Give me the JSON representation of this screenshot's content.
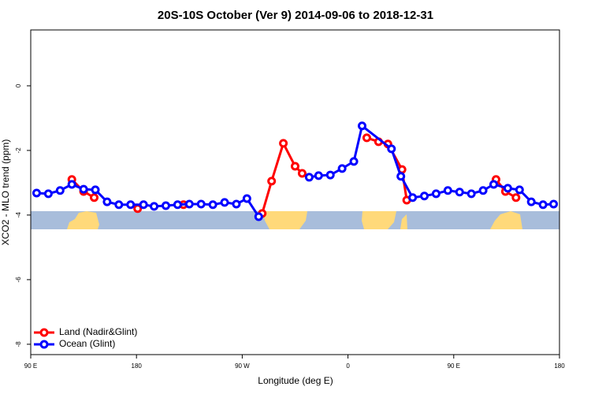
{
  "chart_data": {
    "type": "line",
    "title": "20S-10S October (Ver 9)   2014-09-06 to 2018-12-31",
    "x_label": "Longitude (deg E)",
    "y_label": "XCO2 - MLO trend (ppm)",
    "xlim": [
      90,
      540
    ],
    "ylim": [
      1.73,
      -8.32
    ],
    "xticks": [
      {
        "value": 90,
        "label": "90 E"
      },
      {
        "value": 180,
        "label": "180"
      },
      {
        "value": 270,
        "label": "90 W"
      },
      {
        "value": 360,
        "label": "0"
      },
      {
        "value": 450,
        "label": "90 E"
      },
      {
        "value": 540,
        "label": "180"
      }
    ],
    "yticks": [
      0,
      -2,
      -4,
      -6,
      -8
    ],
    "legend": "bottom-left",
    "series": [
      {
        "name": "Land (Nadir&Glint)",
        "color": "#ff0000",
        "x": [
          125,
          135,
          144,
          null,
          181,
          null,
          220,
          null,
          287,
          295,
          305,
          315,
          321,
          null,
          376,
          386,
          394,
          406,
          410,
          null,
          486,
          494,
          503
        ],
        "values": [
          -2.9,
          -3.27,
          -3.46,
          null,
          -3.8,
          null,
          -3.68,
          null,
          -3.95,
          -2.95,
          -1.78,
          -2.49,
          -2.71,
          null,
          -1.61,
          -1.73,
          -1.8,
          -2.59,
          -3.54,
          null,
          -2.9,
          -3.27,
          -3.46
        ]
      },
      {
        "name": "Ocean (Glint)",
        "color": "#0000ff",
        "x": [
          95,
          105,
          115,
          125,
          135,
          145,
          155,
          165,
          175,
          186,
          195,
          205,
          215,
          225,
          235,
          245,
          255,
          265,
          274,
          284,
          null,
          327,
          335,
          345,
          355,
          365,
          372,
          397,
          405,
          415,
          425,
          435,
          445,
          455,
          465,
          475,
          484,
          496,
          506,
          516,
          526,
          535
        ],
        "values": [
          -3.32,
          -3.34,
          -3.24,
          -3.05,
          -3.2,
          -3.22,
          -3.59,
          -3.68,
          -3.68,
          -3.68,
          -3.73,
          -3.71,
          -3.68,
          -3.66,
          -3.66,
          -3.68,
          -3.61,
          -3.66,
          -3.49,
          -4.05,
          null,
          -2.83,
          -2.78,
          -2.76,
          -2.56,
          -2.34,
          -1.24,
          -1.95,
          -2.8,
          -3.46,
          -3.41,
          -3.34,
          -3.24,
          -3.29,
          -3.34,
          -3.24,
          -3.05,
          -3.17,
          -3.22,
          -3.59,
          -3.68,
          -3.66
        ]
      }
    ]
  }
}
